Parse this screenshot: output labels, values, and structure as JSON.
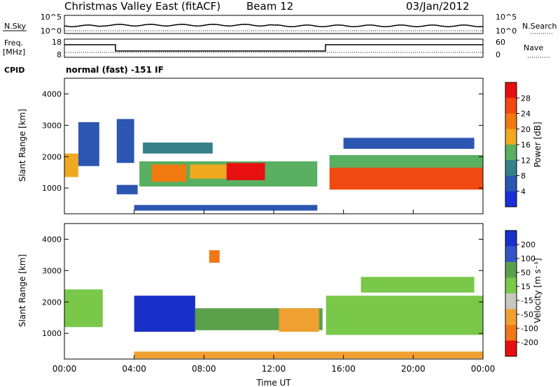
{
  "header": {
    "title": "Christmas Valley East (fitACF)",
    "beam": "Beam 12",
    "date": "03/Jan/2012"
  },
  "noise_panel": {
    "left_label": "N.Sky",
    "right_label": "N.Search",
    "left_ticks": [
      "10^5",
      "10^0"
    ],
    "right_ticks": [
      "10^5",
      "10^0"
    ]
  },
  "freq_panel": {
    "left_label_1": "Freq.",
    "left_label_2": "[MHz]",
    "right_label": "Nave",
    "left_ticks": [
      "18",
      "8"
    ],
    "right_ticks": [
      "60",
      "0"
    ]
  },
  "cpid": {
    "label": "CPID",
    "text": "normal (fast) -151 IF"
  },
  "colors": {
    "power_scale": [
      "#1a2fd8",
      "#2b56b2",
      "#36808a",
      "#58b060",
      "#f0a820",
      "#f07a10",
      "#f04a10",
      "#e81010"
    ],
    "velocity_scale": [
      "#1830c8",
      "#3555c4",
      "#5aa04a",
      "#79c84a",
      "#c8c8c0",
      "#f0a030",
      "#f07818",
      "#e81010"
    ]
  },
  "chart_data": [
    {
      "type": "heatmap",
      "name": "power",
      "ylabel": "Slant Range [km]",
      "yticks": [
        "4000",
        "3000",
        "2000",
        "1000"
      ],
      "ylim": [
        180,
        4500
      ],
      "xlim": [
        0,
        24
      ],
      "colorbar": {
        "label": "Power [dB]",
        "ticks": [
          "28",
          "24",
          "20",
          "16",
          "12",
          "8",
          "4"
        ],
        "range": [
          0,
          32
        ]
      },
      "bands": [
        {
          "t0": 0.0,
          "t1": 0.8,
          "r0": 1350,
          "r1": 2100,
          "value": 18
        },
        {
          "t0": 0.8,
          "t1": 2.0,
          "r0": 1700,
          "r1": 3100,
          "value": 6
        },
        {
          "t0": 3.0,
          "t1": 4.0,
          "r0": 1800,
          "r1": 3200,
          "value": 6
        },
        {
          "t0": 3.0,
          "t1": 4.2,
          "r0": 800,
          "r1": 1100,
          "value": 7
        },
        {
          "t0": 4.3,
          "t1": 14.5,
          "r0": 1050,
          "r1": 1850,
          "value": 12
        },
        {
          "t0": 5.0,
          "t1": 7.0,
          "r0": 1200,
          "r1": 1750,
          "value": 20
        },
        {
          "t0": 7.2,
          "t1": 9.3,
          "r0": 1300,
          "r1": 1750,
          "value": 18
        },
        {
          "t0": 9.3,
          "t1": 11.5,
          "r0": 1250,
          "r1": 1800,
          "value": 28
        },
        {
          "t0": 4.5,
          "t1": 8.5,
          "r0": 2100,
          "r1": 2450,
          "value": 10
        },
        {
          "t0": 4.0,
          "t1": 14.5,
          "r0": 280,
          "r1": 460,
          "value": 6
        },
        {
          "t0": 15.2,
          "t1": 24.0,
          "r0": 950,
          "r1": 1650,
          "value": 26
        },
        {
          "t0": 15.2,
          "t1": 24.0,
          "r0": 1650,
          "r1": 2050,
          "value": 14
        },
        {
          "t0": 16.0,
          "t1": 23.5,
          "r0": 2250,
          "r1": 2600,
          "value": 5
        }
      ]
    },
    {
      "type": "heatmap",
      "name": "velocity",
      "ylabel": "Slant Range [km]",
      "yticks": [
        "4000",
        "3000",
        "2000",
        "1000"
      ],
      "ylim": [
        180,
        4500
      ],
      "xlim": [
        0,
        24
      ],
      "xticks": [
        "00:00",
        "04:00",
        "08:00",
        "12:00",
        "16:00",
        "20:00",
        "00:00"
      ],
      "xlabel": "Time UT",
      "colorbar": {
        "label": "Velocity [m s⁻¹]",
        "ticks": [
          "200",
          "100",
          "50",
          "15",
          "-15",
          "-50",
          "-100",
          "-200"
        ],
        "range": [
          -250,
          250
        ]
      },
      "bands": [
        {
          "t0": 0.0,
          "t1": 2.2,
          "r0": 1200,
          "r1": 2400,
          "value": 0
        },
        {
          "t0": 4.0,
          "t1": 7.5,
          "r0": 1050,
          "r1": 2200,
          "value": 160
        },
        {
          "t0": 7.5,
          "t1": 14.8,
          "r0": 1100,
          "r1": 1800,
          "value": 40
        },
        {
          "t0": 12.3,
          "t1": 14.6,
          "r0": 1050,
          "r1": 1800,
          "value": -50
        },
        {
          "t0": 8.3,
          "t1": 8.9,
          "r0": 3250,
          "r1": 3650,
          "value": -80
        },
        {
          "t0": 4.0,
          "t1": 24.0,
          "r0": 200,
          "r1": 420,
          "value": -50
        },
        {
          "t0": 15.0,
          "t1": 24.0,
          "r0": 950,
          "r1": 2200,
          "value": 0
        },
        {
          "t0": 17.0,
          "t1": 23.5,
          "r0": 2300,
          "r1": 2800,
          "value": 0
        }
      ]
    }
  ]
}
